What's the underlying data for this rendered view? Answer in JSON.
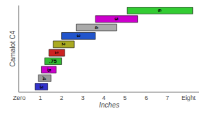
{
  "chart_data": {
    "type": "bar",
    "orientation": "horizontal",
    "xlabel": "Inches",
    "ylabel": "Camalot C4",
    "categories": [
      ".3",
      ".4",
      ".5",
      ".75",
      "1",
      "2",
      "3",
      "4",
      "5",
      "6"
    ],
    "values": [
      [
        0.75,
        1.35
      ],
      [
        0.9,
        1.5
      ],
      [
        1.05,
        1.75
      ],
      [
        1.2,
        2.0
      ],
      [
        1.4,
        2.15
      ],
      [
        1.6,
        2.6
      ],
      [
        2.0,
        3.6
      ],
      [
        2.7,
        4.6
      ],
      [
        3.6,
        5.6
      ],
      [
        5.1,
        8.2
      ]
    ],
    "colors": [
      "#3333cc",
      "#999999",
      "#cc00cc",
      "#33bb33",
      "#cc2222",
      "#aaaa22",
      "#2255cc",
      "#aaaaaa",
      "#cc00cc",
      "#33cc33"
    ],
    "xlim": [
      0,
      8.5
    ],
    "xticks": [
      {
        "value": 0,
        "label": "Zero"
      },
      1,
      2,
      3,
      4,
      5,
      6,
      7,
      {
        "value": 8,
        "label": "Eight"
      }
    ],
    "tick_labels": "x",
    "grid": false
  }
}
